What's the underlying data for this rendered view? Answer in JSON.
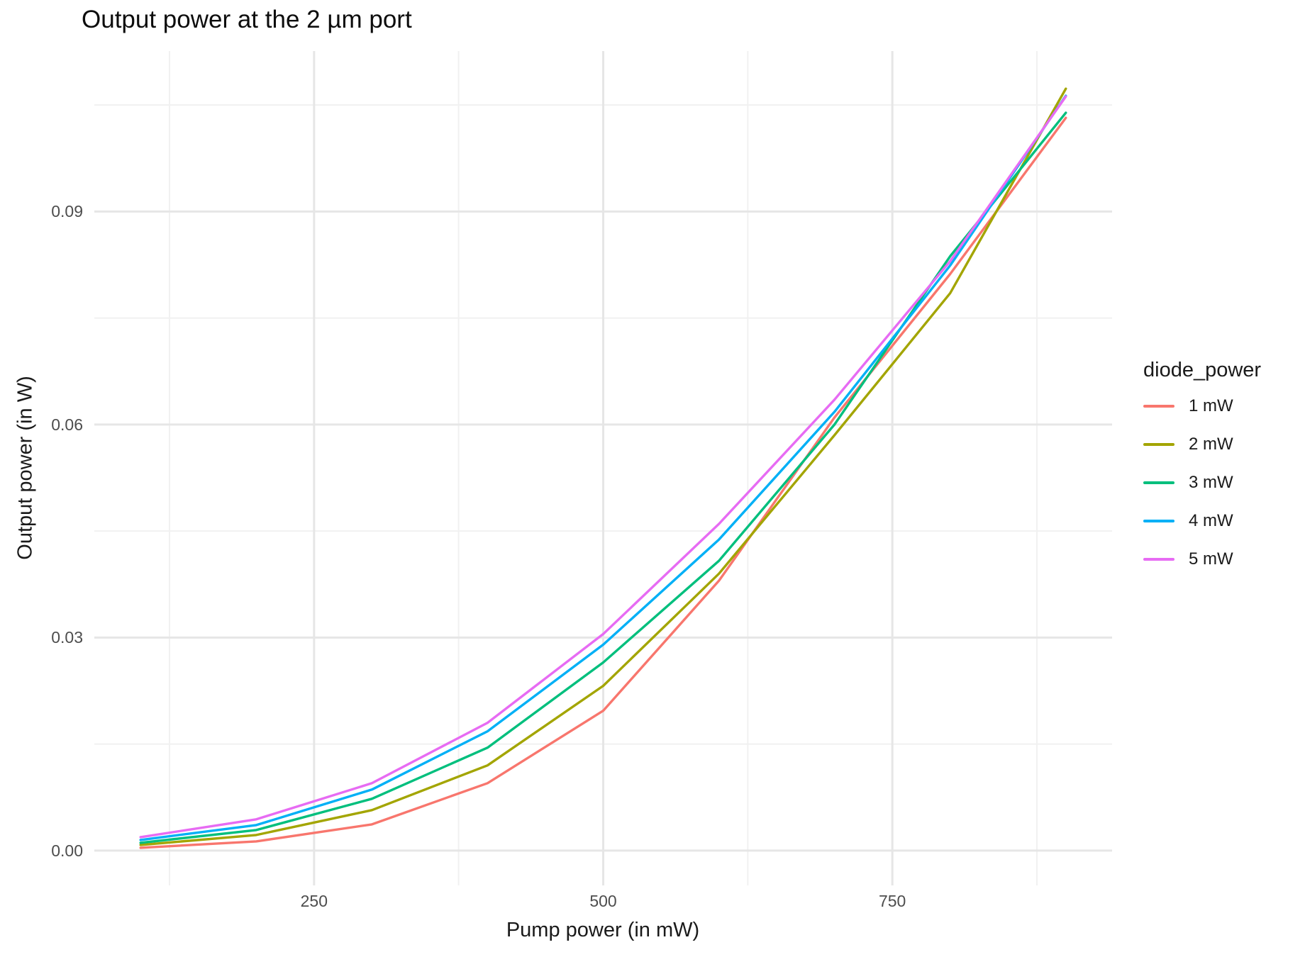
{
  "theme": {
    "background": "#ffffff",
    "grid_major": "#e6e6e6",
    "grid_minor": "#f1f1f1",
    "tick_label_color": "#4d4d4d",
    "text_color": "#1a1a1a"
  },
  "chart_data": {
    "type": "line",
    "title": "Output power at the 2 µm port",
    "xlabel": "Pump power (in mW)",
    "ylabel": "Output power (in W)",
    "legend_title": "diode_power",
    "legend_position": "right",
    "grid": true,
    "x": [
      100,
      200,
      300,
      400,
      500,
      600,
      700,
      800,
      900
    ],
    "x_ticks": [
      250,
      500,
      750
    ],
    "x_tick_labels": [
      "250",
      "500",
      "750"
    ],
    "x_minor_ticks": [
      125,
      375,
      625,
      875
    ],
    "y_ticks": [
      0,
      0.03,
      0.06,
      0.09
    ],
    "y_tick_labels": [
      "0.00",
      "0.03",
      "0.06",
      "0.09"
    ],
    "y_minor_ticks": [
      0.015,
      0.045,
      0.075,
      0.105
    ],
    "xlim": [
      60,
      940
    ],
    "ylim": [
      -0.0049,
      0.1126
    ],
    "series": [
      {
        "name": "1 mW",
        "color": "#F8766D",
        "values": [
          0.0004,
          0.0013,
          0.0037,
          0.0095,
          0.0197,
          0.038,
          0.061,
          0.0812,
          0.1032
        ]
      },
      {
        "name": "2 mW",
        "color": "#A3A500",
        "values": [
          0.0008,
          0.0022,
          0.0057,
          0.012,
          0.0232,
          0.039,
          0.0585,
          0.0785,
          0.1073
        ]
      },
      {
        "name": "3 mW",
        "color": "#00BF7D",
        "values": [
          0.0011,
          0.0029,
          0.0073,
          0.0145,
          0.0265,
          0.0408,
          0.06,
          0.0837,
          0.1039
        ]
      },
      {
        "name": "4 mW",
        "color": "#00B0F6",
        "values": [
          0.0015,
          0.0036,
          0.0086,
          0.0168,
          0.029,
          0.0438,
          0.0618,
          0.0824,
          0.1063
        ]
      },
      {
        "name": "5 mW",
        "color": "#E76BF3",
        "values": [
          0.0019,
          0.0044,
          0.0095,
          0.018,
          0.0305,
          0.046,
          0.0635,
          0.083,
          0.1062
        ]
      }
    ]
  }
}
